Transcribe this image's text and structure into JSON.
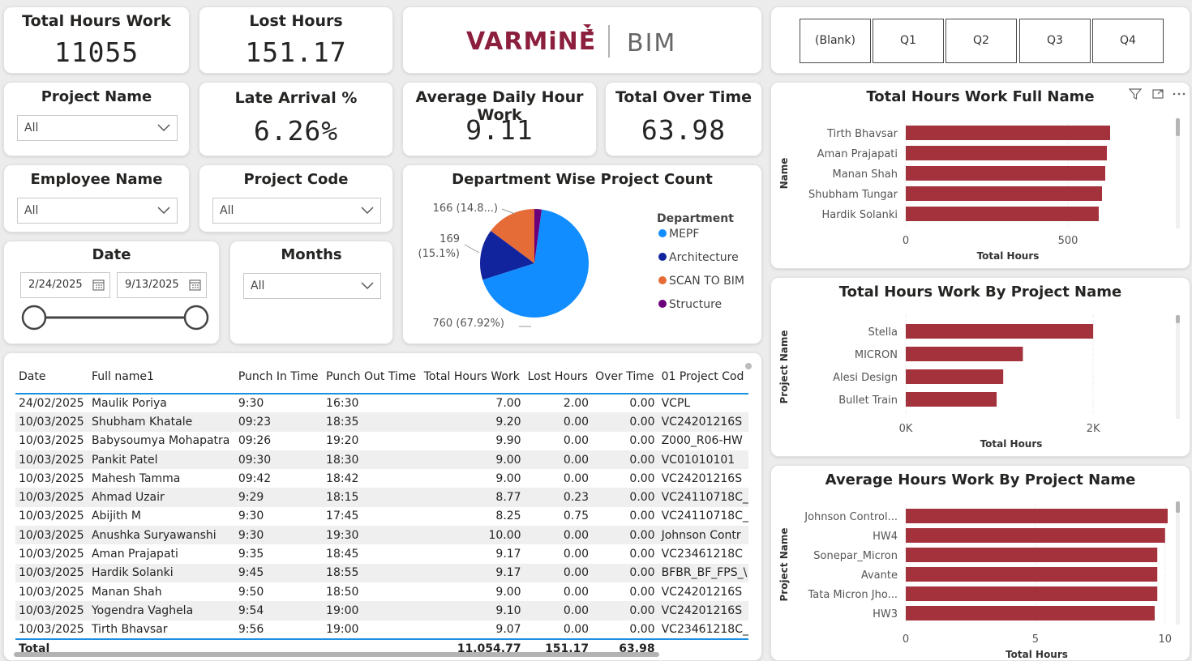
{
  "kpis": {
    "total_hours_work": {
      "title": "Total Hours Work",
      "value": "11055"
    },
    "lost_hours": {
      "title": "Lost Hours",
      "value": "151.17"
    },
    "late_arrival": {
      "title": "Late Arrival %",
      "value": "6.26%"
    },
    "avg_daily_hour": {
      "title": "Average Daily Hour Work",
      "value": "9.11"
    },
    "total_over_time": {
      "title": "Total Over Time",
      "value": "63.98"
    }
  },
  "logo": {
    "brand": "VARMiNE",
    "sub": "BIM",
    "brand_color": "#8c1f3d"
  },
  "slicers": {
    "project_name": {
      "title": "Project Name",
      "value": "All"
    },
    "employee_name": {
      "title": "Employee Name",
      "value": "All"
    },
    "project_code": {
      "title": "Project Code",
      "value": "All"
    },
    "months": {
      "title": "Months",
      "value": "All"
    },
    "date": {
      "title": "Date",
      "start": "2/24/2025",
      "end": "9/13/2025"
    }
  },
  "quarters": [
    "(Blank)",
    "Q1",
    "Q2",
    "Q3",
    "Q4"
  ],
  "colors": {
    "bar": "#a4323d",
    "accent": "#1a8fe0",
    "mepf": "#118dff",
    "architecture": "#12239e",
    "scan_to_bim": "#e66c37",
    "structure": "#6b007b"
  },
  "chart_data": [
    {
      "type": "pie",
      "title": "Department Wise Project Count",
      "legend_title": "Department",
      "legend_position": "right",
      "categories": [
        "MEPF",
        "Architecture",
        "SCAN TO BIM",
        "Structure"
      ],
      "values": [
        760,
        169,
        166,
        24
      ],
      "colors": [
        "#118dff",
        "#12239e",
        "#e66c37",
        "#6b007b"
      ],
      "labels": [
        {
          "lines": [
            "760 (67.92%)"
          ]
        },
        {
          "lines": [
            "169",
            "(15.1%)"
          ]
        },
        {
          "lines": [
            "166 (14.8...)"
          ]
        }
      ]
    },
    {
      "type": "bar",
      "title": "Total Hours Work Full Name",
      "ylabel": "Name",
      "xlabel": "Total Hours",
      "categories": [
        "Tirth Bhavsar",
        "Aman Prajapati",
        "Manan Shah",
        "Shubham Tungar",
        "Hardik Solanki"
      ],
      "values": [
        630,
        620,
        615,
        605,
        595
      ],
      "xlim": [
        0,
        630
      ],
      "xticks": [
        0,
        500
      ],
      "xtick_labels": [
        "0",
        "500"
      ],
      "grid": true
    },
    {
      "type": "bar",
      "title": "Total Hours Work By Project Name",
      "ylabel": "Project Name",
      "xlabel": "Total Hours",
      "categories": [
        "Stella",
        "MICRON",
        "Alesi Design",
        "Bullet Train"
      ],
      "values": [
        2000,
        1250,
        1040,
        970
      ],
      "xlim": [
        0,
        2250
      ],
      "xticks": [
        0,
        2000
      ],
      "xtick_labels": [
        "0K",
        "2K"
      ],
      "grid": true
    },
    {
      "type": "bar",
      "title": "Average Hours Work By Project Name",
      "ylabel": "Project Name",
      "xlabel": "Total Hours",
      "categories": [
        "Johnson Control...",
        "HW4",
        "Sonepar_Micron",
        "Avante",
        "Tata Micron Jho...",
        "HW3"
      ],
      "values": [
        10.1,
        10.0,
        9.7,
        9.7,
        9.7,
        9.6
      ],
      "xlim": [
        0,
        10.1
      ],
      "xticks": [
        0,
        5,
        10
      ],
      "xtick_labels": [
        "0",
        "5",
        "10"
      ],
      "grid": true
    }
  ],
  "table": {
    "columns": [
      "Date",
      "Full name1",
      "Punch In Time",
      "Punch Out Time",
      "Total Hours Work",
      "Lost Hours",
      "Over Time",
      "01 Project Cod"
    ],
    "rows": [
      [
        "24/02/2025",
        "Maulik Poriya",
        "9:30",
        "16:30",
        "7.00",
        "2.00",
        "0.00",
        "VCPL"
      ],
      [
        "10/03/2025",
        "Shubham Khatale",
        "09:23",
        "18:35",
        "9.20",
        "0.00",
        "0.00",
        "VC24201216S"
      ],
      [
        "10/03/2025",
        "Babysoumya Mohapatra",
        "09:26",
        "19:20",
        "9.90",
        "0.00",
        "0.00",
        "Z000_R06-HW"
      ],
      [
        "10/03/2025",
        "Pankit Patel",
        "09:30",
        "18:30",
        "9.00",
        "0.00",
        "0.00",
        "VC01010101"
      ],
      [
        "10/03/2025",
        "Mahesh Tamma",
        "09:42",
        "18:42",
        "9.00",
        "0.00",
        "0.00",
        "VC24201216S"
      ],
      [
        "10/03/2025",
        "Ahmad Uzair",
        "9:29",
        "18:15",
        "8.77",
        "0.23",
        "0.00",
        "VC24110718C_"
      ],
      [
        "10/03/2025",
        "Abijith M",
        "9:30",
        "17:45",
        "8.25",
        "0.75",
        "0.00",
        "VC24110718C_"
      ],
      [
        "10/03/2025",
        "Anushka Suryawanshi",
        "9:30",
        "19:30",
        "10.00",
        "0.00",
        "0.00",
        "Johnson Contr"
      ],
      [
        "10/03/2025",
        "Aman Prajapati",
        "9:35",
        "18:45",
        "9.17",
        "0.00",
        "0.00",
        "VC23461218C"
      ],
      [
        "10/03/2025",
        "Hardik Solanki",
        "9:45",
        "18:55",
        "9.17",
        "0.00",
        "0.00",
        "BFBR_BF_FPS_\\"
      ],
      [
        "10/03/2025",
        "Manan Shah",
        "9:50",
        "18:50",
        "9.00",
        "0.00",
        "0.00",
        "VC24201216S"
      ],
      [
        "10/03/2025",
        "Yogendra Vaghela",
        "9:54",
        "19:00",
        "9.10",
        "0.00",
        "0.00",
        "VC24201216S"
      ],
      [
        "10/03/2025",
        "Tirth Bhavsar",
        "9:56",
        "19:00",
        "9.07",
        "0.00",
        "0.00",
        "VC23461218C_"
      ]
    ],
    "total": {
      "label": "Total",
      "total_hours": "11,054.77",
      "lost_hours": "151.17",
      "over_time": "63.98"
    }
  }
}
